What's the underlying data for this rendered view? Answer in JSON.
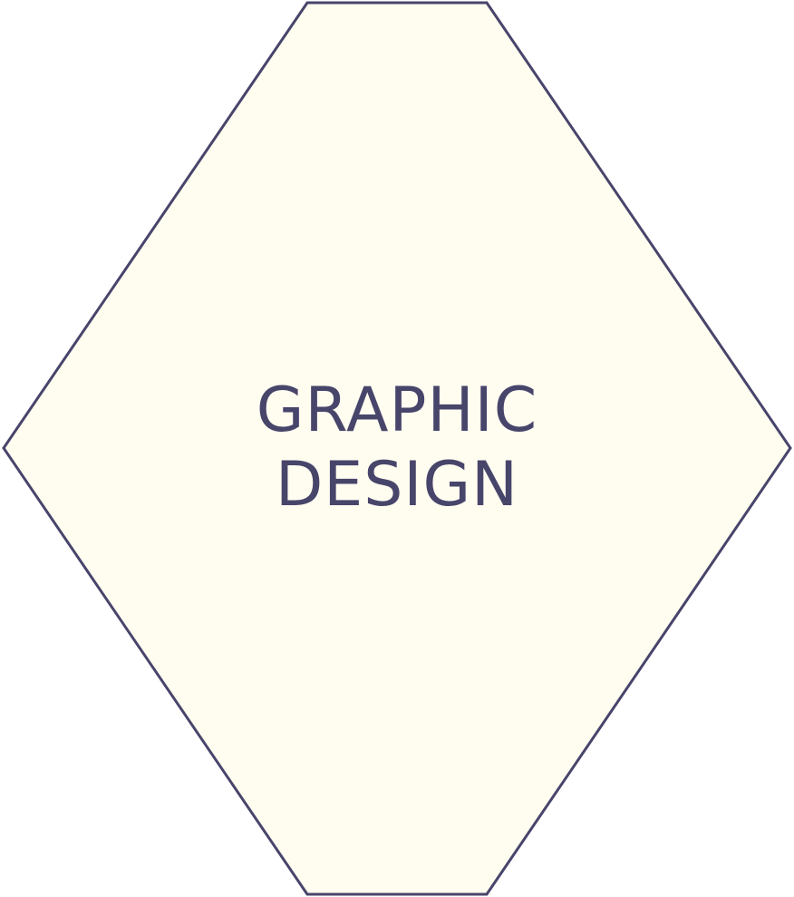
{
  "shape": {
    "label_lines": [
      "GRAPHIC",
      "DESIGN"
    ],
    "fill_color": "#fffdf0",
    "stroke_color": "#48456b",
    "text_color": "#48456b"
  }
}
